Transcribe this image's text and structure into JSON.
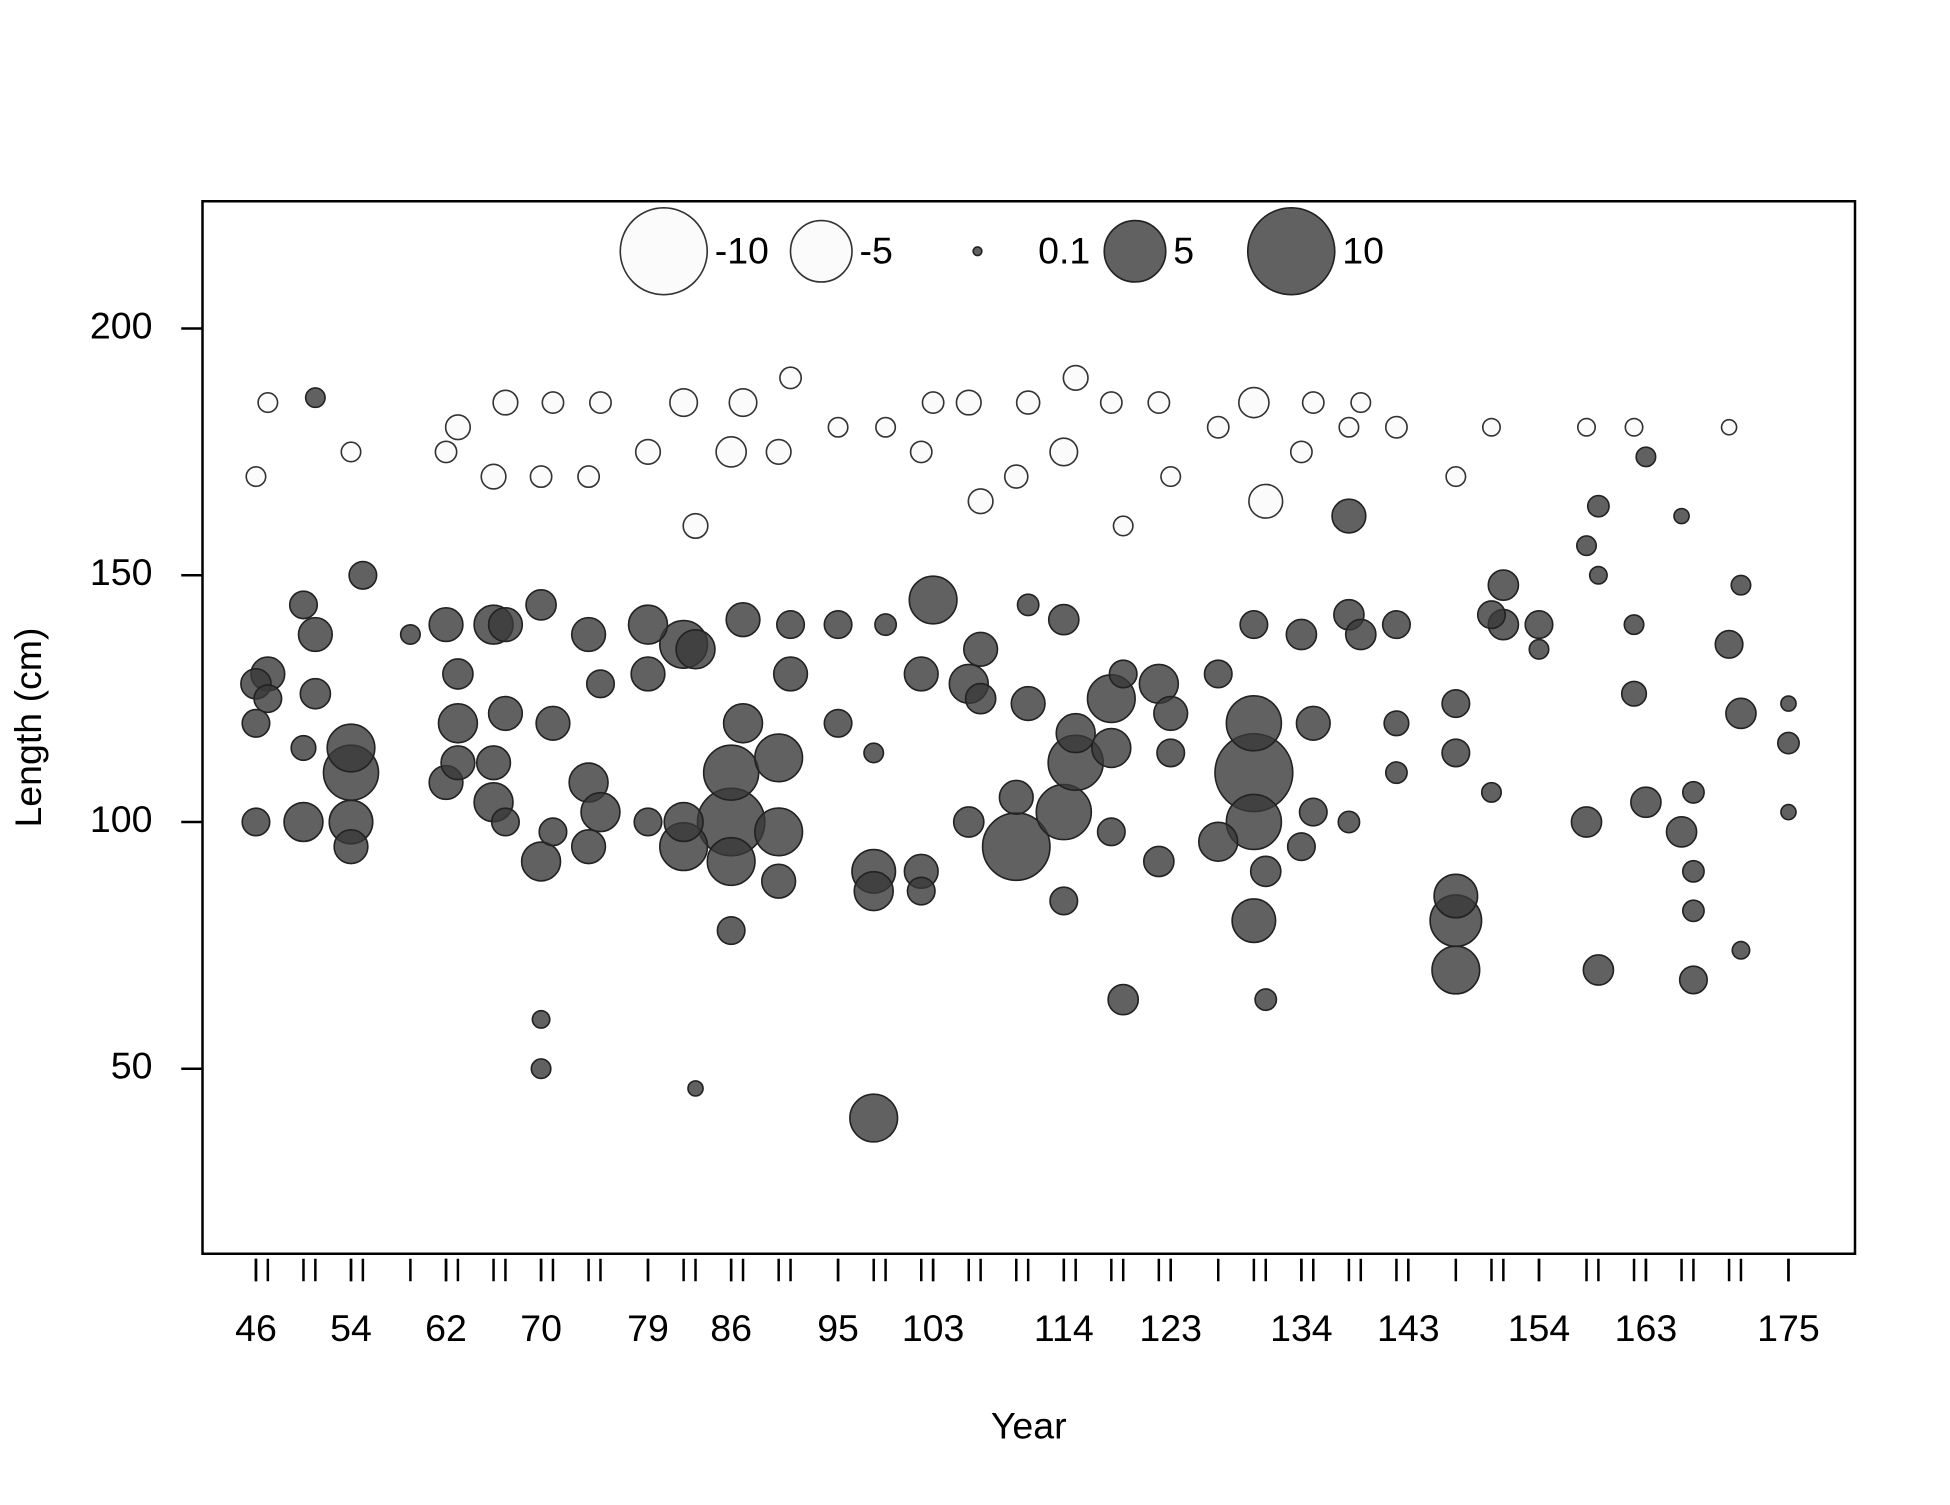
{
  "chart_data": {
    "type": "bubble",
    "x_label": "Year",
    "y_label": "Length (cm)",
    "xlim": [
      41.5,
      180.6
    ],
    "ylim": [
      12.5,
      225.8
    ],
    "xticks": [
      46,
      54,
      62,
      70,
      79,
      86,
      95,
      103,
      114,
      123,
      134,
      143,
      154,
      163,
      175
    ],
    "x_minor_ticks": [
      46,
      47,
      50,
      51,
      54,
      55,
      59,
      62,
      63,
      66,
      67,
      70,
      71,
      74,
      75,
      79,
      82,
      83,
      86,
      87,
      90,
      91,
      95,
      98,
      99,
      102,
      103,
      106,
      107,
      110,
      111,
      114,
      115,
      118,
      119,
      122,
      123,
      127,
      130,
      131,
      134,
      135,
      138,
      139,
      142,
      143,
      147,
      150,
      151,
      154,
      158,
      159,
      162,
      163,
      166,
      167,
      170,
      171,
      175
    ],
    "yticks": [
      50,
      100,
      150,
      200
    ],
    "legend_sizes": [
      -10,
      -5,
      0.1,
      5,
      10
    ],
    "positive_color": "#3a3a3a",
    "negative_color": "#fafafa",
    "x": [
      46,
      46,
      46,
      46,
      47,
      47,
      47,
      50,
      50,
      50,
      51,
      51,
      51,
      54,
      54,
      54,
      54,
      54,
      55,
      59,
      62,
      62,
      62,
      63,
      63,
      63,
      63,
      66,
      66,
      66,
      66,
      67,
      67,
      67,
      67,
      70,
      70,
      70,
      70,
      70,
      71,
      71,
      71,
      74,
      74,
      74,
      74,
      75,
      75,
      75,
      79,
      79,
      79,
      79,
      82,
      82,
      82,
      82,
      83,
      83,
      83,
      86,
      86,
      86,
      86,
      86,
      87,
      87,
      87,
      90,
      90,
      90,
      90,
      91,
      91,
      91,
      95,
      95,
      95,
      98,
      98,
      98,
      98,
      99,
      99,
      102,
      102,
      102,
      102,
      103,
      103,
      106,
      106,
      106,
      107,
      107,
      107,
      110,
      110,
      110,
      111,
      111,
      111,
      114,
      114,
      114,
      114,
      115,
      115,
      115,
      118,
      118,
      118,
      118,
      119,
      119,
      119,
      122,
      122,
      122,
      123,
      123,
      123,
      127,
      127,
      127,
      130,
      130,
      130,
      130,
      130,
      130,
      131,
      131,
      131,
      134,
      134,
      134,
      135,
      135,
      135,
      138,
      138,
      138,
      138,
      139,
      139,
      142,
      142,
      142,
      142,
      147,
      147,
      147,
      147,
      147,
      147,
      150,
      150,
      150,
      151,
      151,
      154,
      154,
      158,
      158,
      158,
      159,
      159,
      159,
      162,
      162,
      162,
      163,
      163,
      166,
      166,
      167,
      167,
      167,
      167,
      170,
      170,
      171,
      171,
      171,
      175,
      175,
      175
    ],
    "y": [
      128,
      100,
      120,
      170,
      130,
      125,
      185,
      144,
      100,
      115,
      138,
      126,
      186,
      115,
      110,
      100,
      95,
      175,
      150,
      138,
      140,
      108,
      175,
      120,
      130,
      112,
      180,
      140,
      104,
      112,
      170,
      122,
      140,
      100,
      185,
      144,
      92,
      60,
      50,
      170,
      120,
      98,
      185,
      138,
      108,
      95,
      170,
      102,
      128,
      185,
      140,
      130,
      100,
      175,
      136,
      95,
      100,
      185,
      135,
      46,
      160,
      110,
      100,
      92,
      78,
      175,
      141,
      120,
      185,
      113,
      98,
      88,
      175,
      130,
      140,
      190,
      140,
      120,
      180,
      90,
      86,
      40,
      114,
      140,
      180,
      130,
      90,
      86,
      175,
      145,
      185,
      128,
      100,
      185,
      135,
      125,
      165,
      95,
      105,
      170,
      124,
      144,
      185,
      141,
      102,
      84,
      175,
      112,
      118,
      190,
      125,
      115,
      98,
      185,
      64,
      130,
      160,
      128,
      92,
      185,
      122,
      114,
      170,
      96,
      130,
      180,
      110,
      120,
      100,
      140,
      80,
      185,
      90,
      64,
      165,
      138,
      95,
      175,
      120,
      102,
      185,
      162,
      142,
      100,
      180,
      138,
      185,
      140,
      120,
      110,
      180,
      85,
      80,
      70,
      114,
      124,
      170,
      142,
      106,
      180,
      148,
      140,
      140,
      135,
      100,
      156,
      180,
      164,
      70,
      150,
      126,
      140,
      180,
      104,
      174,
      98,
      162,
      68,
      82,
      106,
      90,
      136,
      180,
      122,
      148,
      74,
      116,
      102,
      124
    ],
    "size": [
      1.2,
      1,
      1,
      -0.5,
      1.5,
      1,
      -0.5,
      1,
      2,
      0.8,
      1.5,
      1.2,
      0.5,
      3,
      4,
      2.5,
      1.5,
      -0.5,
      1,
      0.5,
      1.5,
      1.5,
      -0.6,
      2,
      1.2,
      1.5,
      -0.8,
      2,
      2,
      1.5,
      -0.8,
      1.5,
      1.5,
      1,
      -0.8,
      1.2,
      2,
      0.4,
      0.5,
      -0.6,
      1.5,
      1,
      -0.6,
      1.5,
      2,
      1.5,
      -0.6,
      2,
      1,
      -0.6,
      2,
      1.5,
      1,
      -0.8,
      3,
      3,
      2,
      -1,
      2,
      0.3,
      -0.8,
      4,
      6,
      3,
      1,
      -1.2,
      1.5,
      2,
      -1,
      3,
      3,
      1.5,
      -0.8,
      1.5,
      1,
      -0.6,
      1,
      1,
      -0.5,
      2.5,
      2,
      3,
      0.5,
      0.6,
      -0.5,
      1.5,
      1.5,
      1,
      -0.6,
      3,
      -0.6,
      2,
      1.2,
      -0.8,
      1.5,
      1.2,
      -0.8,
      6,
      1.5,
      -0.7,
      1.5,
      0.6,
      -0.7,
      1.2,
      4,
      1,
      -1,
      4,
      2,
      -0.8,
      3,
      2,
      1,
      -0.6,
      1.2,
      1,
      -0.5,
      2,
      1.2,
      -0.6,
      1.5,
      1,
      -0.5,
      2,
      1,
      -0.6,
      8,
      4,
      4,
      1,
      2.5,
      -1.2,
      1.2,
      0.6,
      -1.5,
      1.2,
      1,
      -0.6,
      1.5,
      1,
      -0.6,
      1.5,
      1.2,
      0.6,
      -0.5,
      1.2,
      -0.5,
      1,
      0.8,
      0.6,
      -0.6,
      2.5,
      3.5,
      3,
      1,
      1,
      -0.5,
      1,
      0.5,
      -0.4,
      1.2,
      1.2,
      1,
      0.5,
      1.2,
      0.5,
      -0.4,
      0.6,
      1.2,
      0.4,
      0.8,
      0.5,
      -0.4,
      1.2,
      0.5,
      1.2,
      0.3,
      1,
      0.6,
      0.6,
      0.6,
      1,
      -0.3,
      1.2,
      0.5,
      0.4,
      0.6,
      0.3,
      0.3
    ]
  }
}
